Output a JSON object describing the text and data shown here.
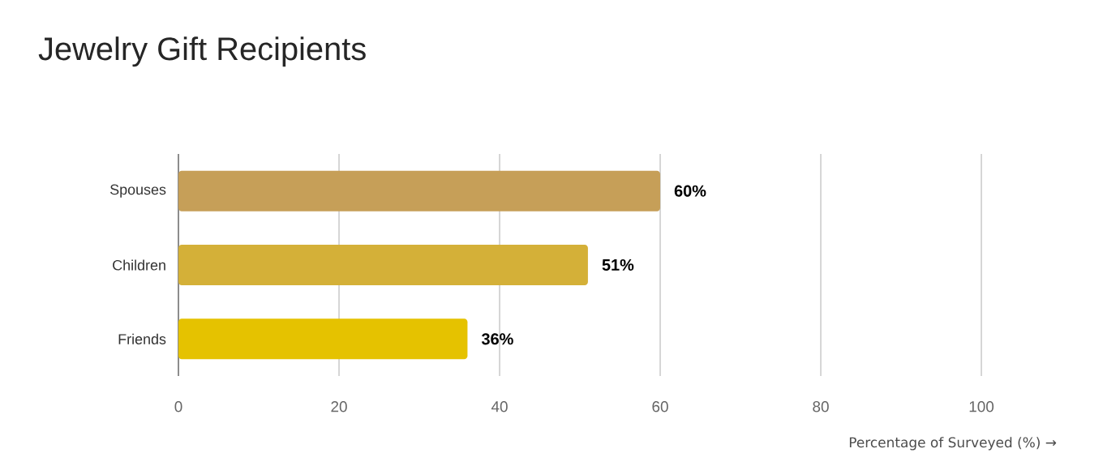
{
  "chart_data": {
    "type": "bar",
    "orientation": "horizontal",
    "title": "Jewelry Gift Recipients",
    "xlabel": "Percentage of Surveyed (%) →",
    "categories": [
      "Spouses",
      "Children",
      "Friends"
    ],
    "values": [
      60,
      51,
      36
    ],
    "value_labels": [
      "60%",
      "51%",
      "36%"
    ],
    "colors": [
      "#c69f58",
      "#d4b038",
      "#e5c200"
    ],
    "xlim": [
      0,
      100
    ],
    "xticks": [
      0,
      20,
      40,
      60,
      80,
      100
    ],
    "grid": "x"
  }
}
